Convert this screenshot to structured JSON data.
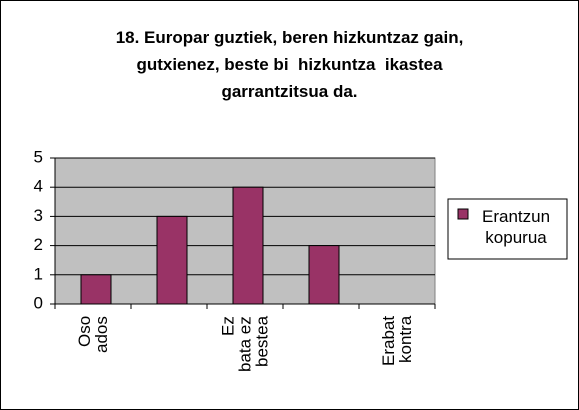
{
  "chart_data": {
    "type": "bar",
    "title": "18. Europar guztiek, beren hizkuntzaz gain,\ngutxienez, beste bi  hizkuntza  ikastea\ngarrantzitsua da.",
    "categories": [
      "Oso\nados",
      null,
      "Ez\nbata ez\nbestea",
      null,
      "Erabat\nkontra"
    ],
    "series": [
      {
        "name": "Erantzun\nkopurua",
        "color": "#993366",
        "values": [
          1,
          3,
          4,
          2,
          0
        ]
      }
    ],
    "ylim": [
      0,
      5
    ],
    "yticks": [
      0,
      1,
      2,
      3,
      4,
      5
    ],
    "grid": true,
    "legend": "right"
  }
}
